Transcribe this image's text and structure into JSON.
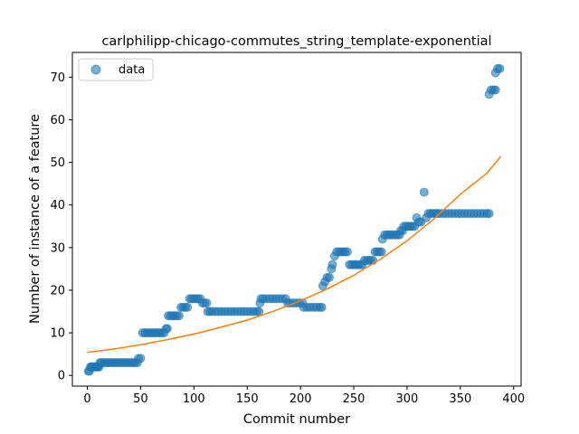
{
  "chart_data": {
    "type": "scatter",
    "title": "carlphilipp-chicago-commutes_string_template-exponential",
    "xlabel": "Commit number",
    "ylabel": "Number of instance of a feature",
    "xlim": [
      -14,
      407
    ],
    "ylim": [
      -2.5,
      75.8
    ],
    "xticks": [
      0,
      50,
      100,
      150,
      200,
      250,
      300,
      350,
      400
    ],
    "yticks": [
      0,
      10,
      20,
      30,
      40,
      50,
      60,
      70
    ],
    "grid": false,
    "legend": {
      "position": "top-left",
      "entries": [
        "data"
      ]
    },
    "colors": {
      "data": "#1f77b4",
      "fit": "#ff7f0e"
    },
    "series": [
      {
        "name": "data",
        "kind": "scatter",
        "points": [
          [
            1,
            1
          ],
          [
            2,
            1
          ],
          [
            3,
            2
          ],
          [
            4,
            2
          ],
          [
            5,
            2
          ],
          [
            6,
            2
          ],
          [
            7,
            2
          ],
          [
            8,
            2
          ],
          [
            9,
            2
          ],
          [
            10,
            2
          ],
          [
            11,
            2
          ],
          [
            12,
            3
          ],
          [
            13,
            3
          ],
          [
            15,
            3
          ],
          [
            17,
            3
          ],
          [
            19,
            3
          ],
          [
            21,
            3
          ],
          [
            23,
            3
          ],
          [
            25,
            3
          ],
          [
            27,
            3
          ],
          [
            29,
            3
          ],
          [
            31,
            3
          ],
          [
            33,
            3
          ],
          [
            35,
            3
          ],
          [
            37,
            3
          ],
          [
            39,
            3
          ],
          [
            41,
            3
          ],
          [
            43,
            3
          ],
          [
            45,
            3
          ],
          [
            47,
            3
          ],
          [
            48,
            4
          ],
          [
            50,
            4
          ],
          [
            52,
            10
          ],
          [
            54,
            10
          ],
          [
            56,
            10
          ],
          [
            58,
            10
          ],
          [
            60,
            10
          ],
          [
            62,
            10
          ],
          [
            64,
            10
          ],
          [
            66,
            10
          ],
          [
            68,
            10
          ],
          [
            70,
            10
          ],
          [
            72,
            10
          ],
          [
            74,
            11
          ],
          [
            75,
            11
          ],
          [
            76,
            14
          ],
          [
            78,
            14
          ],
          [
            80,
            14
          ],
          [
            82,
            14
          ],
          [
            84,
            14
          ],
          [
            86,
            14
          ],
          [
            88,
            16
          ],
          [
            90,
            16
          ],
          [
            92,
            16
          ],
          [
            94,
            16
          ],
          [
            96,
            18
          ],
          [
            98,
            18
          ],
          [
            100,
            18
          ],
          [
            102,
            18
          ],
          [
            104,
            18
          ],
          [
            106,
            18
          ],
          [
            108,
            17
          ],
          [
            110,
            17
          ],
          [
            112,
            17
          ],
          [
            113,
            15
          ],
          [
            115,
            15
          ],
          [
            117,
            15
          ],
          [
            120,
            15
          ],
          [
            123,
            15
          ],
          [
            126,
            15
          ],
          [
            129,
            15
          ],
          [
            132,
            15
          ],
          [
            135,
            15
          ],
          [
            138,
            15
          ],
          [
            141,
            15
          ],
          [
            144,
            15
          ],
          [
            147,
            15
          ],
          [
            150,
            15
          ],
          [
            153,
            15
          ],
          [
            156,
            15
          ],
          [
            159,
            15
          ],
          [
            161,
            15
          ],
          [
            162,
            17
          ],
          [
            163,
            18
          ],
          [
            165,
            18
          ],
          [
            168,
            18
          ],
          [
            171,
            18
          ],
          [
            174,
            18
          ],
          [
            177,
            18
          ],
          [
            180,
            18
          ],
          [
            183,
            18
          ],
          [
            186,
            18
          ],
          [
            188,
            17
          ],
          [
            190,
            17
          ],
          [
            193,
            17
          ],
          [
            196,
            17
          ],
          [
            199,
            17
          ],
          [
            202,
            17
          ],
          [
            203,
            16
          ],
          [
            206,
            16
          ],
          [
            209,
            16
          ],
          [
            212,
            16
          ],
          [
            215,
            16
          ],
          [
            218,
            16
          ],
          [
            220,
            16
          ],
          [
            221,
            21
          ],
          [
            223,
            22
          ],
          [
            225,
            23
          ],
          [
            227,
            23
          ],
          [
            229,
            25
          ],
          [
            230,
            26
          ],
          [
            232,
            28
          ],
          [
            234,
            29
          ],
          [
            236,
            29
          ],
          [
            238,
            29
          ],
          [
            240,
            29
          ],
          [
            242,
            29
          ],
          [
            244,
            29
          ],
          [
            246,
            26
          ],
          [
            248,
            26
          ],
          [
            250,
            26
          ],
          [
            252,
            26
          ],
          [
            254,
            26
          ],
          [
            256,
            26
          ],
          [
            258,
            26
          ],
          [
            260,
            27
          ],
          [
            262,
            27
          ],
          [
            264,
            27
          ],
          [
            266,
            27
          ],
          [
            268,
            27
          ],
          [
            270,
            29
          ],
          [
            272,
            29
          ],
          [
            274,
            29
          ],
          [
            276,
            29
          ],
          [
            277,
            32
          ],
          [
            279,
            33
          ],
          [
            281,
            33
          ],
          [
            283,
            33
          ],
          [
            285,
            33
          ],
          [
            287,
            33
          ],
          [
            289,
            33
          ],
          [
            291,
            33
          ],
          [
            293,
            33
          ],
          [
            294,
            34
          ],
          [
            296,
            34
          ],
          [
            297,
            35
          ],
          [
            299,
            35
          ],
          [
            301,
            35
          ],
          [
            303,
            35
          ],
          [
            305,
            35
          ],
          [
            307,
            35
          ],
          [
            309,
            37
          ],
          [
            311,
            36
          ],
          [
            313,
            36
          ],
          [
            316,
            43
          ],
          [
            318,
            37
          ],
          [
            320,
            38
          ],
          [
            322,
            38
          ],
          [
            324,
            38
          ],
          [
            326,
            38
          ],
          [
            328,
            38
          ],
          [
            330,
            38
          ],
          [
            333,
            38
          ],
          [
            336,
            38
          ],
          [
            339,
            38
          ],
          [
            342,
            38
          ],
          [
            345,
            38
          ],
          [
            348,
            38
          ],
          [
            351,
            38
          ],
          [
            354,
            38
          ],
          [
            357,
            38
          ],
          [
            360,
            38
          ],
          [
            363,
            38
          ],
          [
            366,
            38
          ],
          [
            369,
            38
          ],
          [
            372,
            38
          ],
          [
            375,
            38
          ],
          [
            377,
            38
          ],
          [
            377,
            66
          ],
          [
            379,
            67
          ],
          [
            381,
            67
          ],
          [
            383,
            67
          ],
          [
            383,
            71
          ],
          [
            385,
            72
          ],
          [
            387,
            72
          ]
        ]
      },
      {
        "name": "",
        "kind": "line",
        "points": [
          [
            0,
            5.4
          ],
          [
            25,
            6.2
          ],
          [
            50,
            7.2
          ],
          [
            75,
            8.4
          ],
          [
            100,
            9.7
          ],
          [
            125,
            11.3
          ],
          [
            150,
            13.0
          ],
          [
            175,
            15.1
          ],
          [
            200,
            17.5
          ],
          [
            225,
            20.3
          ],
          [
            250,
            23.5
          ],
          [
            275,
            27.3
          ],
          [
            300,
            31.6
          ],
          [
            325,
            36.7
          ],
          [
            350,
            42.5
          ],
          [
            375,
            47.5
          ],
          [
            388,
            51.4
          ]
        ]
      }
    ]
  }
}
